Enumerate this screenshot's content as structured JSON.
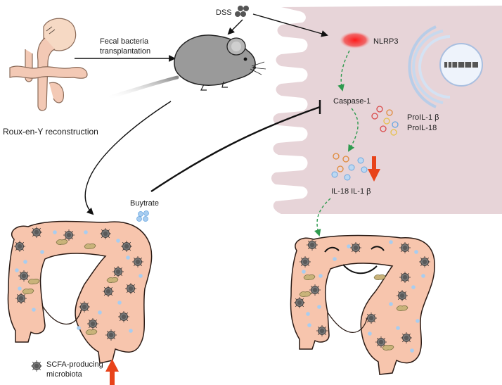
{
  "labels": {
    "surgery": "Roux-en-Y reconstruction",
    "fmt_line1": "Fecal bacteria",
    "fmt_line2": "transplantation",
    "dss": "DSS",
    "nlrp3": "NLRP3",
    "caspase": "Caspase-1",
    "proil1b": "ProIL-1 β",
    "proil18": "ProIL-18",
    "il": "IL-18 IL-1 β",
    "butyrate": "Buytrate",
    "scfa_line1": "SCFA-producing",
    "scfa_line2": "microbiota"
  },
  "colors": {
    "cell": "#e7d4d8",
    "colon": "#f7c5ad",
    "nlrp3": "#f0282a",
    "up_arrow": "#e8431a",
    "down_arrow": "#e8431a",
    "butyrate_dot": "#a8cdf0",
    "bacteria": "#8a8a8a",
    "green_arrow": "#2e9a4e",
    "mouse": "#9a9a9a"
  },
  "icons": {
    "mouse": "mouse-icon",
    "surgery": "stomach-intestine-icon",
    "nucleus": "nucleus-icon",
    "bacteria": "bacteria-icon"
  }
}
